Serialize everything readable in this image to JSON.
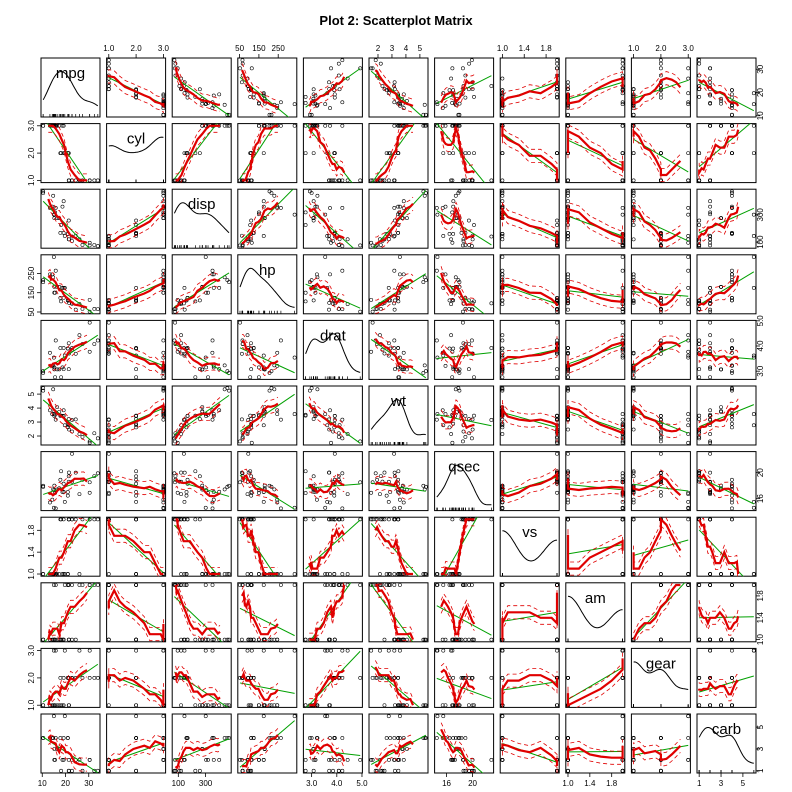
{
  "chart_data": {
    "type": "scatter",
    "title": "Plot 2: Scatterplot Matrix",
    "variables": [
      "mpg",
      "cyl",
      "disp",
      "hp",
      "drat",
      "wt",
      "qsec",
      "vs",
      "am",
      "gear",
      "carb"
    ],
    "axis_ticks": {
      "mpg": [
        "10",
        "20",
        "30"
      ],
      "cyl": [
        "1.0",
        "2.0",
        "3.0"
      ],
      "disp": [
        "100",
        "300"
      ],
      "hp": [
        "50",
        "150",
        "250"
      ],
      "drat": [
        "3.0",
        "4.0",
        "5.0"
      ],
      "wt": [
        "2",
        "3",
        "4",
        "5"
      ],
      "qsec": [
        "16",
        "20"
      ],
      "vs": [
        "1.0",
        "1.4",
        "1.8"
      ],
      "am": [
        "1.0",
        "1.4",
        "1.8"
      ],
      "gear": [
        "1.0",
        "2.0",
        "3.0"
      ],
      "carb": [
        "1",
        "3",
        "5"
      ]
    },
    "axis_ranges": {
      "mpg": [
        10.4,
        33.9
      ],
      "cyl": [
        1,
        3
      ],
      "disp": [
        71.1,
        472
      ],
      "hp": [
        52,
        335
      ],
      "drat": [
        2.76,
        4.93
      ],
      "wt": [
        1.513,
        5.424
      ],
      "qsec": [
        14.5,
        22.9
      ],
      "vs": [
        1,
        2
      ],
      "am": [
        1,
        2
      ],
      "gear": [
        1,
        3
      ],
      "carb": [
        1,
        6
      ]
    },
    "observations": {
      "mpg": [
        21,
        21,
        22.8,
        21.4,
        18.7,
        18.1,
        14.3,
        24.4,
        22.8,
        19.2,
        17.8,
        16.4,
        17.3,
        15.2,
        10.4,
        10.4,
        14.7,
        32.4,
        30.4,
        33.9,
        21.5,
        15.5,
        15.2,
        13.3,
        19.2,
        27.3,
        26,
        30.4,
        15.8,
        19.7,
        15,
        21.4
      ],
      "cyl": [
        2,
        2,
        1,
        2,
        3,
        2,
        3,
        1,
        1,
        2,
        2,
        3,
        3,
        3,
        3,
        3,
        3,
        1,
        1,
        1,
        1,
        3,
        3,
        3,
        3,
        1,
        1,
        1,
        3,
        2,
        3,
        1
      ],
      "disp": [
        160,
        160,
        108,
        258,
        360,
        225,
        360,
        146.7,
        140.8,
        167.6,
        167.6,
        275.8,
        275.8,
        275.8,
        472,
        460,
        440,
        78.7,
        75.7,
        71.1,
        120.1,
        318,
        304,
        350,
        400,
        79,
        120.3,
        95.1,
        351,
        145,
        301,
        121
      ],
      "hp": [
        110,
        110,
        93,
        110,
        175,
        105,
        245,
        62,
        95,
        123,
        123,
        180,
        180,
        180,
        205,
        215,
        230,
        66,
        52,
        65,
        97,
        150,
        150,
        245,
        175,
        66,
        91,
        113,
        264,
        175,
        335,
        109
      ],
      "drat": [
        3.9,
        3.9,
        3.85,
        3.08,
        3.15,
        2.76,
        3.21,
        3.69,
        3.92,
        3.92,
        3.92,
        3.07,
        3.07,
        3.07,
        2.93,
        3,
        3.23,
        4.08,
        4.93,
        4.22,
        3.7,
        2.76,
        3.15,
        3.73,
        3.08,
        4.08,
        4.43,
        3.77,
        4.22,
        3.62,
        3.54,
        4.11
      ],
      "wt": [
        2.62,
        2.875,
        2.32,
        3.215,
        3.44,
        3.46,
        3.57,
        3.19,
        3.15,
        3.44,
        3.44,
        4.07,
        3.73,
        3.78,
        5.25,
        5.424,
        5.345,
        2.2,
        1.615,
        1.835,
        2.465,
        3.52,
        3.435,
        3.84,
        3.845,
        1.935,
        2.14,
        1.513,
        3.17,
        2.77,
        3.57,
        2.78
      ],
      "qsec": [
        16.46,
        17.02,
        18.61,
        19.44,
        17.02,
        20.22,
        15.84,
        20,
        22.9,
        18.3,
        18.9,
        17.4,
        17.6,
        18,
        17.98,
        17.82,
        17.42,
        19.47,
        18.52,
        19.9,
        20.01,
        16.87,
        17.3,
        15.41,
        17.05,
        18.9,
        16.7,
        16.9,
        14.5,
        15.5,
        14.6,
        18.6
      ],
      "vs": [
        1,
        1,
        2,
        2,
        1,
        2,
        1,
        2,
        2,
        2,
        2,
        1,
        1,
        1,
        1,
        1,
        1,
        2,
        2,
        2,
        2,
        1,
        1,
        1,
        1,
        2,
        1,
        2,
        1,
        1,
        1,
        2
      ],
      "am": [
        2,
        2,
        2,
        1,
        1,
        1,
        1,
        1,
        1,
        1,
        1,
        1,
        1,
        1,
        1,
        1,
        1,
        2,
        2,
        2,
        1,
        1,
        1,
        1,
        1,
        2,
        2,
        2,
        2,
        2,
        2,
        2
      ],
      "gear": [
        2,
        2,
        2,
        1,
        1,
        1,
        1,
        2,
        2,
        2,
        2,
        1,
        1,
        1,
        1,
        1,
        1,
        2,
        2,
        2,
        1,
        1,
        1,
        1,
        1,
        2,
        3,
        3,
        3,
        3,
        3,
        2
      ],
      "carb": [
        4,
        4,
        1,
        1,
        2,
        1,
        4,
        2,
        2,
        4,
        4,
        3,
        3,
        3,
        4,
        4,
        4,
        1,
        2,
        1,
        1,
        2,
        2,
        4,
        2,
        1,
        2,
        2,
        4,
        6,
        6,
        2
      ]
    },
    "series": [
      {
        "name": "",
        "color": "#000000",
        "kind": "points"
      },
      {
        "name": "",
        "color": "#00a000",
        "kind": "linear-fit"
      },
      {
        "name": "",
        "color": "#e00000",
        "kind": "smoother"
      },
      {
        "name": "",
        "color": "#e00000",
        "kind": "spread"
      }
    ],
    "diagonal": "density",
    "grid": false,
    "legend": "none"
  }
}
